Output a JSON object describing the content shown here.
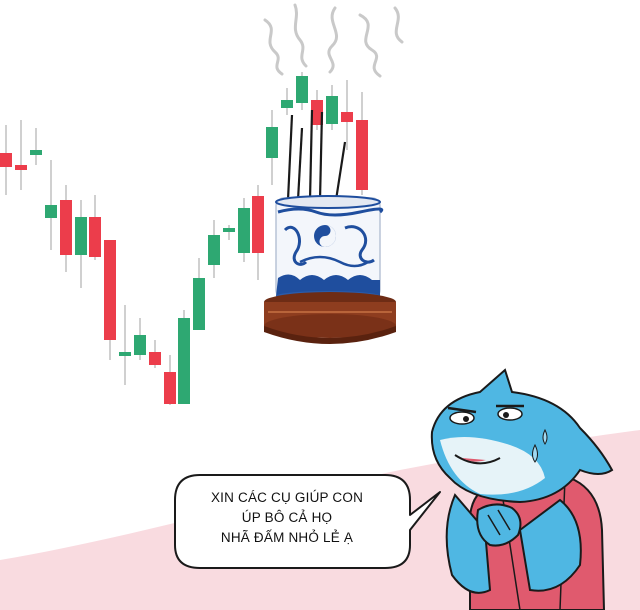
{
  "colors": {
    "up": "#2ea872",
    "down": "#ec3d4b",
    "wick": "#bcbcbc",
    "pink_bg": "#f9dbe0",
    "shark_blue": "#4fb7e3",
    "shark_belly": "#e6f3f8",
    "vest": "#e05a6e",
    "urn_blue": "#1f4e9e",
    "stand_brown": "#8e3d1f"
  },
  "candles": [
    {
      "d": "down"
    },
    {
      "d": "down"
    },
    {
      "d": "up"
    },
    {
      "d": "up"
    },
    {
      "d": "down"
    },
    {
      "d": "up"
    },
    {
      "d": "down"
    },
    {
      "d": "down"
    },
    {
      "d": "up"
    },
    {
      "d": "up"
    },
    {
      "d": "down"
    },
    {
      "d": "down"
    },
    {
      "d": "up"
    },
    {
      "d": "up"
    },
    {
      "d": "up"
    },
    {
      "d": "up"
    },
    {
      "d": "up"
    },
    {
      "d": "down"
    },
    {
      "d": "up"
    },
    {
      "d": "up"
    },
    {
      "d": "up"
    },
    {
      "d": "down"
    },
    {
      "d": "up"
    },
    {
      "d": "down"
    },
    {
      "d": "down"
    }
  ],
  "speech": {
    "line1": "XIN CÁC CỤ GIÚP CON",
    "line2": "ÚP BÔ CẢ HỌ",
    "line3": "NHÃ ĐẤM NHỎ LẺ Ạ"
  },
  "icons": {
    "urn": "incense-urn-icon",
    "shark": "shark-mascot-icon"
  }
}
